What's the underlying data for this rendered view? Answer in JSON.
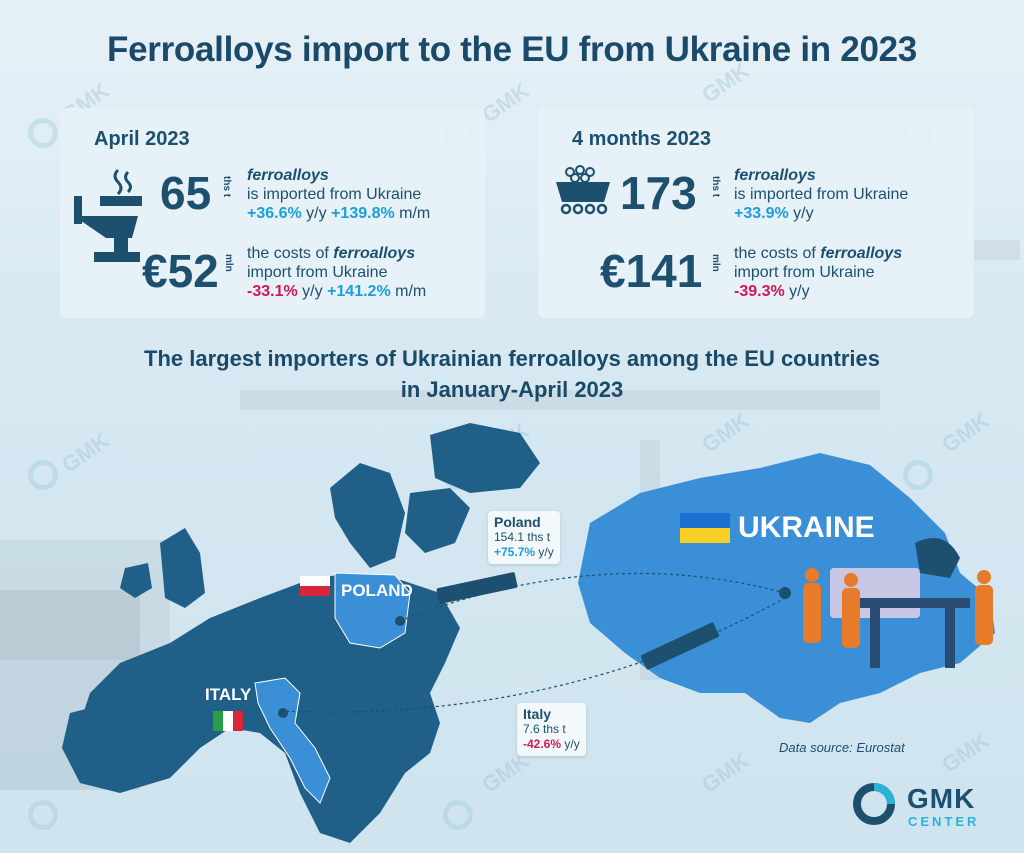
{
  "title": "Ferroalloys import to the EU from Ukraine in 2023",
  "watermark": "GMK",
  "april": {
    "heading": "April 2023",
    "volume": "65",
    "volume_unit": "ths t",
    "volume_word": "ferroalloys",
    "volume_line2": "is imported from Ukraine",
    "volume_yy": "+36.6%",
    "volume_yy_label": "y/y",
    "volume_mm": "+139.8%",
    "volume_mm_label": "m/m",
    "cost": "€52",
    "cost_unit": "mln",
    "cost_line1a": "the costs of",
    "cost_word": "ferroalloys",
    "cost_line2": "import from Ukraine",
    "cost_yy": "-33.1%",
    "cost_yy_label": "y/y",
    "cost_mm": "+141.2%",
    "cost_mm_label": "m/m"
  },
  "four_months": {
    "heading": "4 months 2023",
    "volume": "173",
    "volume_unit": "ths t",
    "volume_word": "ferroalloys",
    "volume_line2": "is imported from Ukraine",
    "volume_yy": "+33.9%",
    "volume_yy_label": "y/y",
    "cost": "€141",
    "cost_unit": "mln",
    "cost_line1a": "the costs of",
    "cost_word": "ferroalloys",
    "cost_line2": "import from Ukraine",
    "cost_yy": "-39.3%",
    "cost_yy_label": "y/y"
  },
  "subtitle_line1": "The largest importers of Ukrainian ferroalloys among the EU countries",
  "subtitle_line2": "in January-April 2023",
  "map": {
    "poland_label": "POLAND",
    "italy_label": "ITALY",
    "ukraine_label": "UKRAINE",
    "poland_box": {
      "country": "Poland",
      "value": "154.1 ths t",
      "change": "+75.7%",
      "change_label": "y/y"
    },
    "italy_box": {
      "country": "Italy",
      "value": "7.6 ths t",
      "change": "-42.6%",
      "change_label": "y/y"
    },
    "colors": {
      "map": "#1f5f88",
      "highlight": "#3a8fd6",
      "ukraine": "#3a8fd6"
    }
  },
  "source": "Data source: Eurostat",
  "logo": {
    "name": "GMK",
    "sub": "CENTER"
  },
  "colors": {
    "positive": "#1a9fd8",
    "negative": "#d2184f",
    "text": "#1d4f6e"
  }
}
